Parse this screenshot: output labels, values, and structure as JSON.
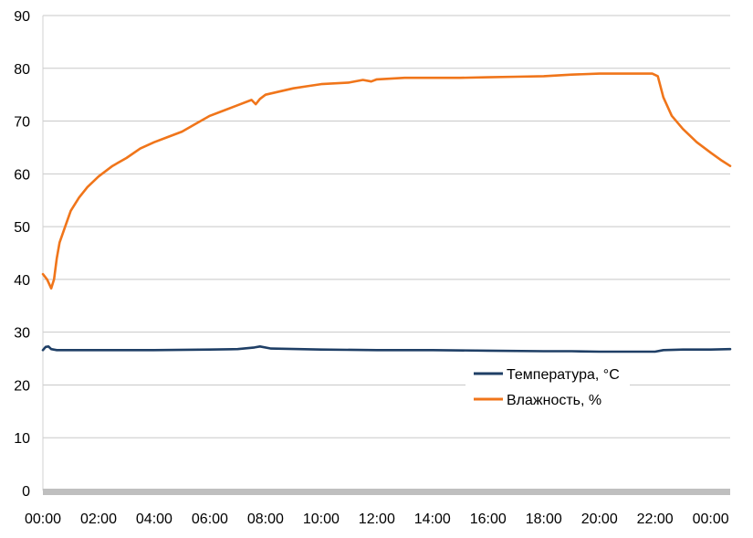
{
  "chart_data": {
    "type": "line",
    "title": "",
    "xlabel": "",
    "ylabel": "",
    "ylim": [
      0,
      90
    ],
    "yticks": [
      0,
      10,
      20,
      30,
      40,
      50,
      60,
      70,
      80,
      90
    ],
    "xlim_hours": [
      0,
      24.7
    ],
    "xticks": [
      "00:00",
      "02:00",
      "04:00",
      "06:00",
      "08:00",
      "10:00",
      "12:00",
      "14:00",
      "16:00",
      "18:00",
      "20:00",
      "22:00",
      "00:00"
    ],
    "xtick_hours": [
      0,
      2,
      4,
      6,
      8,
      10,
      12,
      14,
      16,
      18,
      20,
      22,
      24
    ],
    "grid": "horizontal",
    "legend_position": "center-right",
    "series": [
      {
        "name": "Температура, °C",
        "color": "#1f3f66",
        "x_hours": [
          0,
          0.1,
          0.2,
          0.3,
          0.5,
          1,
          2,
          4,
          6,
          7,
          7.6,
          7.8,
          8.2,
          10,
          12,
          14,
          16,
          18,
          19,
          20,
          21,
          22,
          22.3,
          23,
          24,
          24.7
        ],
        "values": [
          26.6,
          27.2,
          27.3,
          26.8,
          26.6,
          26.6,
          26.6,
          26.6,
          26.7,
          26.8,
          27.1,
          27.3,
          26.9,
          26.7,
          26.6,
          26.6,
          26.5,
          26.4,
          26.4,
          26.3,
          26.3,
          26.3,
          26.6,
          26.7,
          26.7,
          26.8
        ]
      },
      {
        "name": "Влажность, %",
        "color": "#f0751a",
        "x_hours": [
          0,
          0.15,
          0.3,
          0.4,
          0.5,
          0.6,
          0.8,
          1,
          1.3,
          1.6,
          2,
          2.5,
          3,
          3.5,
          4,
          4.5,
          5,
          5.5,
          6,
          6.5,
          7,
          7.5,
          7.65,
          7.8,
          8,
          8.5,
          9,
          9.5,
          10,
          11,
          11.5,
          11.8,
          12,
          13,
          14,
          15,
          16,
          17,
          18,
          19,
          20,
          21,
          21.5,
          21.9,
          22.1,
          22.3,
          22.6,
          23,
          23.5,
          24,
          24.4,
          24.7
        ],
        "values": [
          41,
          40,
          38.3,
          40,
          44,
          47,
          50,
          53,
          55.5,
          57.5,
          59.5,
          61.5,
          63,
          64.8,
          66,
          67,
          68,
          69.5,
          71,
          72,
          73,
          74,
          73.2,
          74.2,
          75,
          75.6,
          76.2,
          76.6,
          77,
          77.3,
          77.8,
          77.5,
          77.9,
          78.2,
          78.2,
          78.2,
          78.3,
          78.4,
          78.5,
          78.8,
          79,
          79,
          79,
          79,
          78.5,
          74.5,
          71,
          68.5,
          66,
          64,
          62.5,
          61.5
        ]
      }
    ]
  }
}
